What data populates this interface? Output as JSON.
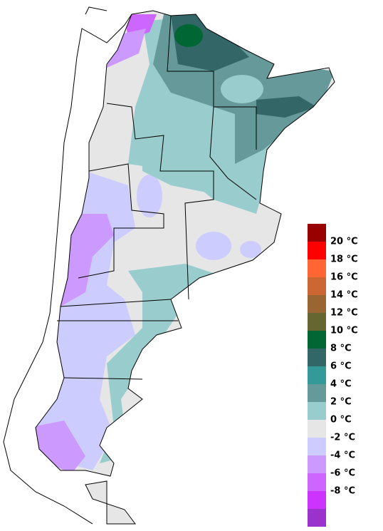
{
  "legend": {
    "colors": [
      "#990000",
      "#ff0000",
      "#ff6633",
      "#cc6633",
      "#996633",
      "#666633",
      "#006633",
      "#336666",
      "#339999",
      "#669999",
      "#99cccc",
      "#e6e6e6",
      "#ccccff",
      "#cc99ff",
      "#cc66ff",
      "#cc33ff",
      "#9933cc"
    ],
    "labels": [
      "20 °C",
      "18 °C",
      "16 °C",
      "14 °C",
      "12 °C",
      "10 °C",
      "8 °C",
      "6 °C",
      "4 °C",
      "2 °C",
      "0 °C",
      "-2 °C",
      "-4 °C",
      "-6 °C",
      "-8 °C"
    ]
  }
}
